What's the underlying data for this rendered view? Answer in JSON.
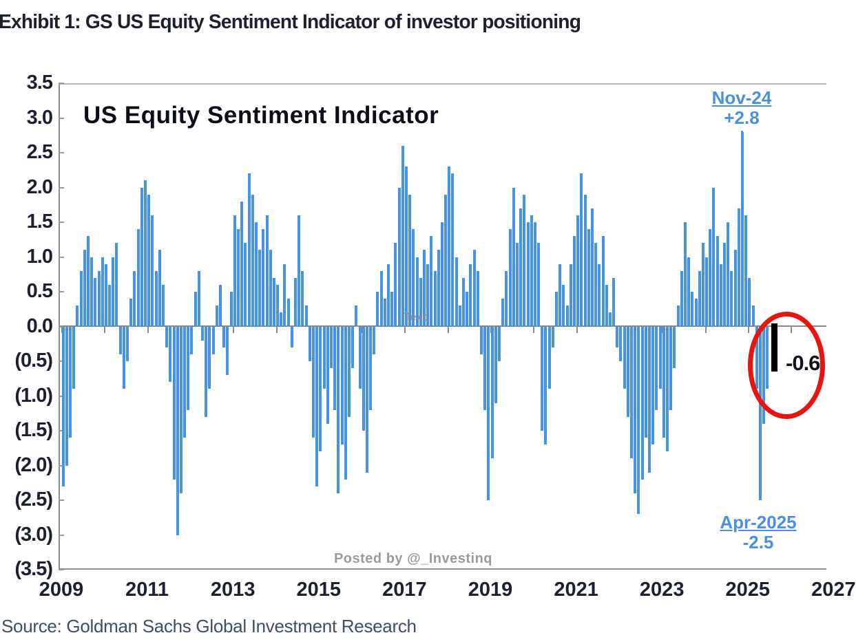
{
  "exhibit_title": "Exhibit 1: GS US Equity Sentiment Indicator of investor positioning",
  "chart_title": "US Equity Sentiment Indicator",
  "source": "Source: Goldman Sachs Global Investment Research",
  "watermarks": {
    "center": "Text",
    "posted": "Posted by @_Investinq"
  },
  "colors": {
    "bar": "#4493e6",
    "latest_bar": "#000000",
    "callout": "#4a8fe2",
    "circle": "#e8150e",
    "axis": "#8f8f8f",
    "label_text": "#1c2030"
  },
  "chart_data": {
    "type": "bar",
    "title": "US Equity Sentiment Indicator",
    "xlabel": "",
    "ylabel": "",
    "ylim": [
      -3.5,
      3.5
    ],
    "y_tick_step": 0.5,
    "y_tick_labels": [
      "3.5",
      "3.0",
      "2.5",
      "2.0",
      "1.5",
      "1.0",
      "0.5",
      "0.0",
      "(0.5)",
      "(1.0)",
      "(1.5)",
      "(2.0)",
      "(2.5)",
      "(3.0)",
      "(3.5)"
    ],
    "x_tick_years": [
      2009,
      2011,
      2013,
      2015,
      2017,
      2019,
      2021,
      2023,
      2025,
      2027
    ],
    "start_year": 2009,
    "frequency": "monthly",
    "grid": false,
    "series": [
      {
        "name": "US Equity Sentiment Indicator",
        "values": [
          -2.3,
          -2.0,
          -1.6,
          -0.9,
          0.3,
          0.8,
          1.1,
          1.3,
          1.0,
          0.7,
          0.8,
          1.0,
          0.9,
          0.6,
          1.0,
          1.2,
          -0.4,
          -0.9,
          -0.5,
          0.4,
          0.8,
          1.4,
          2.0,
          2.1,
          1.9,
          1.6,
          0.8,
          1.1,
          0.6,
          -0.3,
          -0.8,
          -2.2,
          -3.0,
          -2.4,
          -1.6,
          -1.2,
          -0.4,
          0.5,
          0.8,
          -0.2,
          -1.3,
          -0.9,
          -0.4,
          0.3,
          0.6,
          -0.3,
          -0.7,
          0.5,
          1.6,
          1.4,
          1.8,
          1.2,
          2.2,
          1.9,
          1.5,
          1.1,
          1.4,
          1.6,
          1.1,
          0.7,
          0.6,
          0.2,
          0.9,
          0.4,
          -0.3,
          0.7,
          1.6,
          0.8,
          0.3,
          -0.5,
          -1.6,
          -2.3,
          -1.8,
          -0.9,
          -1.4,
          -0.6,
          -1.2,
          -2.4,
          -1.7,
          -2.2,
          -1.3,
          -0.6,
          0.3,
          -0.9,
          -1.5,
          -2.1,
          -1.2,
          -0.4,
          0.5,
          0.8,
          0.4,
          0.9,
          0.5,
          1.2,
          2.0,
          2.6,
          2.3,
          1.9,
          1.4,
          1.0,
          0.7,
          1.1,
          0.9,
          1.3,
          0.8,
          1.1,
          1.5,
          1.9,
          2.3,
          2.2,
          1.0,
          0.3,
          0.7,
          0.5,
          0.9,
          1.1,
          0.8,
          -0.4,
          -1.2,
          -2.5,
          -1.9,
          -1.1,
          -0.5,
          0.4,
          0.8,
          1.4,
          2.0,
          1.2,
          1.7,
          1.9,
          1.5,
          1.6,
          1.5,
          1.2,
          -1.5,
          -1.7,
          -0.9,
          -0.3,
          0.5,
          0.9,
          0.6,
          0.3,
          0.9,
          1.3,
          1.6,
          2.2,
          1.9,
          1.4,
          1.7,
          1.2,
          0.9,
          1.3,
          0.6,
          0.2,
          0.7,
          -0.3,
          -0.5,
          -0.9,
          -1.3,
          -1.9,
          -2.4,
          -2.7,
          -2.2,
          -1.6,
          -2.1,
          -1.7,
          -1.2,
          -0.9,
          -1.6,
          -1.8,
          -1.2,
          -0.6,
          0.3,
          0.8,
          1.5,
          1.0,
          0.5,
          0.4,
          0.8,
          1.2,
          1.0,
          1.4,
          2.0,
          1.3,
          0.9,
          1.2,
          1.5,
          0.8,
          1.1,
          1.7,
          2.8,
          1.6,
          0.7,
          0.3,
          -0.9,
          -2.5,
          -1.4,
          -0.9
        ]
      }
    ],
    "latest_point": {
      "value": -0.6,
      "x_year": 2025.62
    },
    "callouts": [
      {
        "label": "Nov-24",
        "value": "+2.8"
      },
      {
        "label": "Apr-2025",
        "value": "-2.5"
      },
      {
        "label": "-0.6"
      }
    ]
  }
}
